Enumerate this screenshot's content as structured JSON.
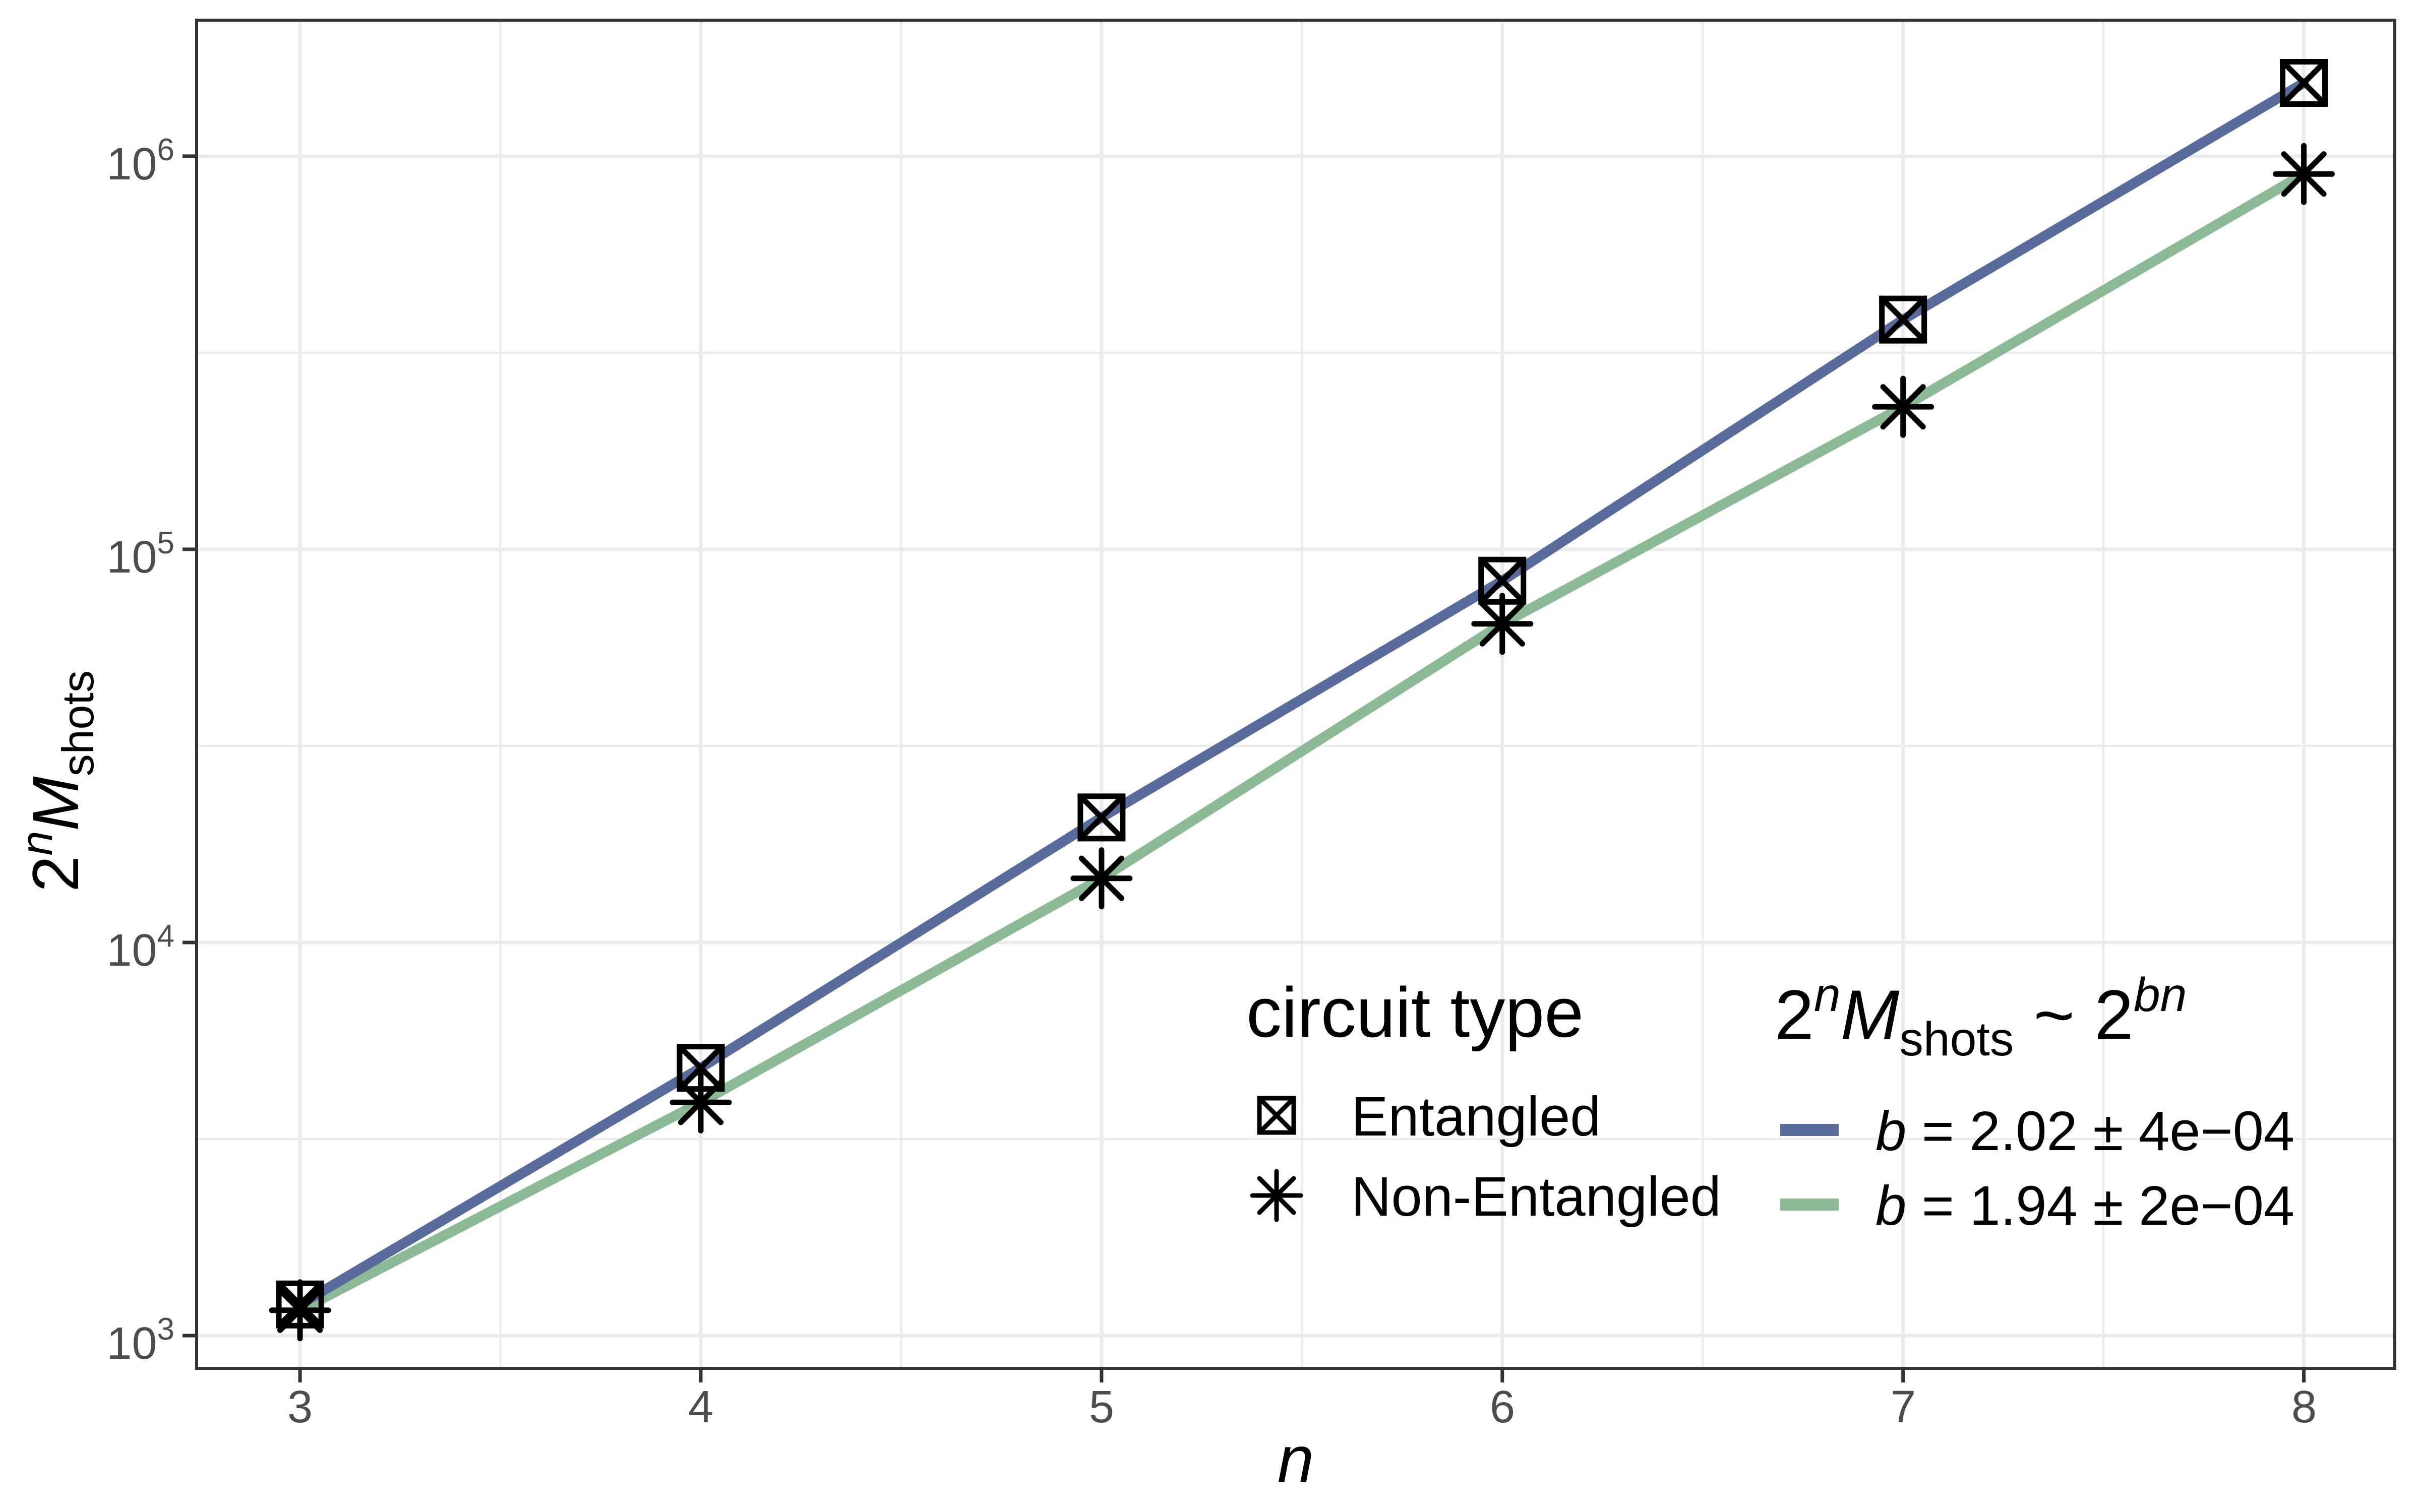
{
  "chart_data": {
    "type": "scatter",
    "title": "",
    "xlabel": "n",
    "ylabel_parts": [
      {
        "t": "2",
        "style": "base"
      },
      {
        "t": "n",
        "style": "sup-italic"
      },
      {
        "t": "M",
        "style": "italic"
      },
      {
        "t": "shots",
        "style": "sub"
      }
    ],
    "x": [
      3,
      4,
      5,
      6,
      7,
      8
    ],
    "x_tick_labels": [
      "3",
      "4",
      "5",
      "6",
      "7",
      "8"
    ],
    "y_ticks": [
      {
        "base": "10",
        "exp": "3"
      },
      {
        "base": "10",
        "exp": "4"
      },
      {
        "base": "10",
        "exp": "5"
      },
      {
        "base": "10",
        "exp": "6"
      }
    ],
    "y_tick_exponents": [
      3,
      4,
      5,
      6
    ],
    "x_minor": [
      3.5,
      4.5,
      5.5,
      6.5,
      7.5
    ],
    "y_minor_exponents": [
      3.5,
      4.5,
      5.5
    ],
    "xlim": [
      2.742,
      8.227
    ],
    "ylog_lim": [
      2.9167,
      6.346
    ],
    "y_log_scale": true,
    "grid": true,
    "legend_position": "inside-bottom-right",
    "series": [
      {
        "name": "Entangled",
        "marker": "crossed-square",
        "color": "#586B9B",
        "values": [
          1200,
          4800,
          20800,
          83200,
          384000,
          1536000
        ],
        "fit_b": "2.02",
        "fit_err": "4e−04"
      },
      {
        "name": "Non-Entangled",
        "marker": "asterisk",
        "color": "#8CB996",
        "values": [
          1160,
          3920,
          14560,
          64640,
          230400,
          901000
        ],
        "fit_b": "1.94",
        "fit_err": "2e−04"
      }
    ],
    "legends": {
      "circuit_type": {
        "title": "circuit type",
        "entries": [
          {
            "label": "Entangled",
            "marker": "crossed-square"
          },
          {
            "label": "Non-Entangled",
            "marker": "asterisk"
          }
        ]
      },
      "fit": {
        "title_parts": [
          {
            "t": "2",
            "style": "base"
          },
          {
            "t": "n",
            "style": "sup-italic"
          },
          {
            "t": "M",
            "style": "italic"
          },
          {
            "t": "shots",
            "style": "sub"
          },
          {
            "t": " ~ 2",
            "style": "base"
          },
          {
            "t": "bn",
            "style": "sup-italic"
          }
        ],
        "entries": [
          {
            "var": "b",
            "rest": " = 2.02 ± 4e−04",
            "color": "#586B9B"
          },
          {
            "var": "b",
            "rest": " = 1.94 ± 2e−04",
            "color": "#8CB996"
          }
        ]
      }
    },
    "colors": {
      "background": "#FFFFFF",
      "panel_border": "#333333",
      "grid": "#EBEBEB",
      "tick_mark": "#333333",
      "tick_text": "#4D4D4D",
      "text": "#000000",
      "entangled": "#586B9B",
      "non_entangled": "#8CB996",
      "marker": "#000000"
    }
  }
}
